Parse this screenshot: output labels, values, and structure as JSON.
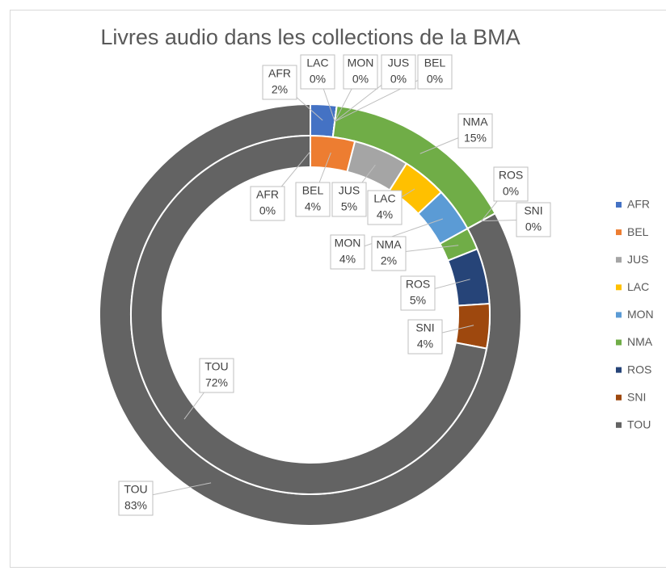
{
  "chart_data": {
    "type": "doughnut",
    "title": "Livres audio dans les collections de la BMA",
    "categories": [
      "AFR",
      "BEL",
      "JUS",
      "LAC",
      "MON",
      "NMA",
      "ROS",
      "SNI",
      "TOU"
    ],
    "colors": [
      "#4472c4",
      "#ed7d31",
      "#a5a5a5",
      "#ffc000",
      "#5b9bd5",
      "#70ad47",
      "#264478",
      "#9e480e",
      "#636363"
    ],
    "series": [
      {
        "values": [
          2,
          0,
          0,
          0,
          0,
          15,
          0,
          0,
          83
        ],
        "value_labels": [
          "2%",
          "0%",
          "0%",
          "0%",
          "0%",
          "15%",
          "0%",
          "0%",
          "83%"
        ]
      },
      {
        "values": [
          0,
          4,
          5,
          4,
          4,
          2,
          5,
          4,
          72
        ],
        "value_labels": [
          "0%",
          "4%",
          "5%",
          "4%",
          "4%",
          "2%",
          "5%",
          "4%",
          "72%"
        ]
      }
    ],
    "legend": "right"
  }
}
